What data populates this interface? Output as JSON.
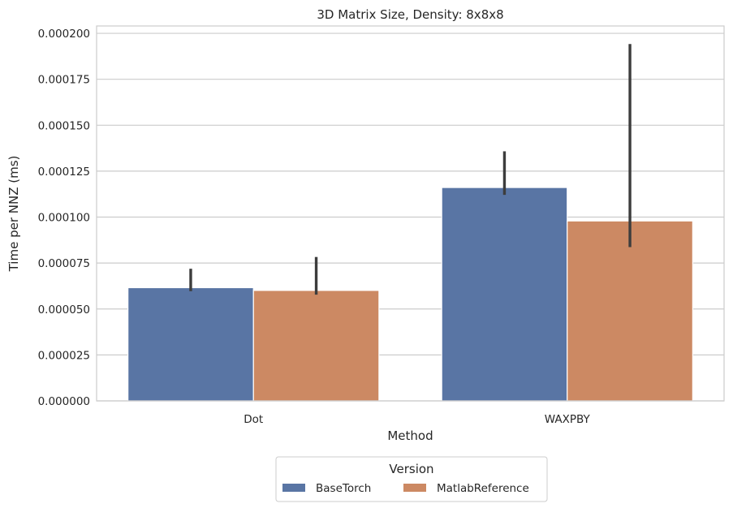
{
  "chart_data": {
    "type": "bar",
    "title": "3D Matrix Size, Density: 8x8x8",
    "xlabel": "Method",
    "ylabel": "Time per NNZ (ms)",
    "categories": [
      "Dot",
      "WAXPBY"
    ],
    "ylim": [
      0,
      0.000204
    ],
    "yticks": [
      "0.000000",
      "0.000025",
      "0.000050",
      "0.000075",
      "0.000100",
      "0.000125",
      "0.000150",
      "0.000175",
      "0.000200"
    ],
    "ytick_values": [
      0,
      2.5e-05,
      5e-05,
      7.5e-05,
      0.0001,
      0.000125,
      0.00015,
      0.000175,
      0.0002
    ],
    "grid": "horizontal",
    "legend": {
      "title": "Version",
      "placement": "bottom-center",
      "columns": 2
    },
    "series": [
      {
        "name": "BaseTorch",
        "color": "#5975a4",
        "values": [
          6.16e-05,
          0.0001161
        ],
        "ci_low": [
          5.97e-05,
          0.0001121
        ],
        "ci_high": [
          7.19e-05,
          0.0001358
        ]
      },
      {
        "name": "MatlabReference",
        "color": "#cc8963",
        "values": [
          6.01e-05,
          9.79e-05
        ],
        "ci_low": [
          5.78e-05,
          8.37e-05
        ],
        "ci_high": [
          7.83e-05,
          0.0001942
        ]
      }
    ]
  }
}
